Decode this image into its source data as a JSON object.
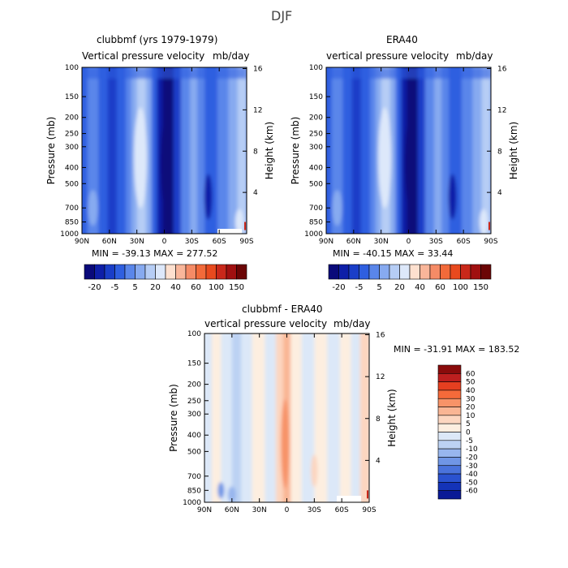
{
  "page": {
    "title": "DJF"
  },
  "panels": [
    {
      "title": "clubbmf (yrs 1979-1979)",
      "subtitle_left": "Vertical pressure velocity",
      "subtitle_right": "mb/day",
      "stats": "MIN = -39.13   MAX = 277.52",
      "colorbar": "horizontal"
    },
    {
      "title": "ERA40",
      "subtitle_left": "vertical pressure velocity",
      "subtitle_right": "mb/day",
      "stats": "MIN = -40.15   MAX =  33.44",
      "colorbar": "horizontal"
    },
    {
      "title": "clubbmf - ERA40",
      "subtitle_left": "vertical pressure velocity",
      "subtitle_right": "mb/day",
      "stats": "MIN = -31.91   MAX = 183.52",
      "colorbar": "vertical"
    }
  ],
  "axes": {
    "ylabel_left": "Pressure (mb)",
    "ylabel_right": "Height (km)",
    "pressure_ticks": [
      "100",
      "150",
      "200",
      "250",
      "300",
      "400",
      "500",
      "700",
      "850",
      "1000"
    ],
    "pressure_values": [
      100,
      150,
      200,
      250,
      300,
      400,
      500,
      700,
      850,
      1000
    ],
    "height_ticks": [
      "16",
      "12",
      "8",
      "4"
    ],
    "height_values": [
      16,
      12,
      8,
      4
    ],
    "lat_ticks": [
      "90N",
      "60N",
      "30N",
      "0",
      "30S",
      "60S",
      "90S"
    ],
    "lat_values": [
      90,
      60,
      30,
      0,
      -30,
      -60,
      -90
    ]
  },
  "colorbars": {
    "top_labels": [
      "-20",
      "-5",
      "5",
      "20",
      "40",
      "60",
      "100",
      "150"
    ],
    "top_colors": [
      "#0a0a7a",
      "#0e1fa8",
      "#1a3ec8",
      "#2f5fe0",
      "#5a86ea",
      "#87aaf0",
      "#b6cdf5",
      "#dde8fa",
      "#fde0cf",
      "#f9b69a",
      "#f58b66",
      "#f26a3a",
      "#e84a1e",
      "#c9281a",
      "#a01010",
      "#6b0505"
    ],
    "diff_labels": [
      "60",
      "50",
      "40",
      "30",
      "20",
      "10",
      "5",
      "0",
      "-5",
      "-10",
      "-20",
      "-30",
      "-40",
      "-50",
      "-60"
    ],
    "diff_colors": [
      "#8a0b0b",
      "#bd1f1f",
      "#e63f20",
      "#f56a3a",
      "#f79368",
      "#f9b594",
      "#fcd6c0",
      "#fdeee0",
      "#dce8f8",
      "#bcd2f3",
      "#98b6ee",
      "#7096e6",
      "#4a73dc",
      "#2a52d0",
      "#1433b8",
      "#0a1a96"
    ]
  },
  "chart_data": [
    {
      "type": "heatmap",
      "title": "clubbmf (yrs 1979-1979)",
      "subtitle": "Vertical pressure velocity mb/day",
      "xlabel": "",
      "ylabel": "Pressure (mb)",
      "ylabel_right": "Height (km)",
      "x_ticks": [
        "90N",
        "60N",
        "30N",
        "0",
        "30S",
        "60S",
        "90S"
      ],
      "y_ticks": [
        100,
        150,
        200,
        250,
        300,
        400,
        500,
        700,
        850,
        1000
      ],
      "ylim": [
        1000,
        100
      ],
      "y_scale": "log",
      "z_min": -39.13,
      "z_max": 277.52,
      "contour_levels": [
        -20,
        -15,
        -10,
        -5,
        0,
        5,
        10,
        15,
        20,
        40,
        60,
        80,
        100,
        150
      ]
    },
    {
      "type": "heatmap",
      "title": "ERA40",
      "subtitle": "vertical pressure velocity mb/day",
      "xlabel": "",
      "ylabel": "Pressure (mb)",
      "ylabel_right": "Height (km)",
      "x_ticks": [
        "90N",
        "60N",
        "30N",
        "0",
        "30S",
        "60S",
        "90S"
      ],
      "y_ticks": [
        100,
        150,
        200,
        250,
        300,
        400,
        500,
        700,
        850,
        1000
      ],
      "ylim": [
        1000,
        100
      ],
      "y_scale": "log",
      "z_min": -40.15,
      "z_max": 33.44
    },
    {
      "type": "heatmap",
      "title": "clubbmf - ERA40",
      "subtitle": "vertical pressure velocity mb/day",
      "xlabel": "",
      "ylabel": "Pressure (mb)",
      "ylabel_right": "Height (km)",
      "x_ticks": [
        "90N",
        "60N",
        "30N",
        "0",
        "30S",
        "60S",
        "90S"
      ],
      "y_ticks": [
        100,
        150,
        200,
        250,
        300,
        400,
        500,
        700,
        850,
        1000
      ],
      "ylim": [
        1000,
        100
      ],
      "y_scale": "log",
      "z_min": -31.91,
      "z_max": 183.52,
      "contour_levels": [
        -60,
        -50,
        -40,
        -30,
        -20,
        -10,
        -5,
        0,
        5,
        10,
        20,
        30,
        40,
        50,
        60
      ]
    }
  ]
}
